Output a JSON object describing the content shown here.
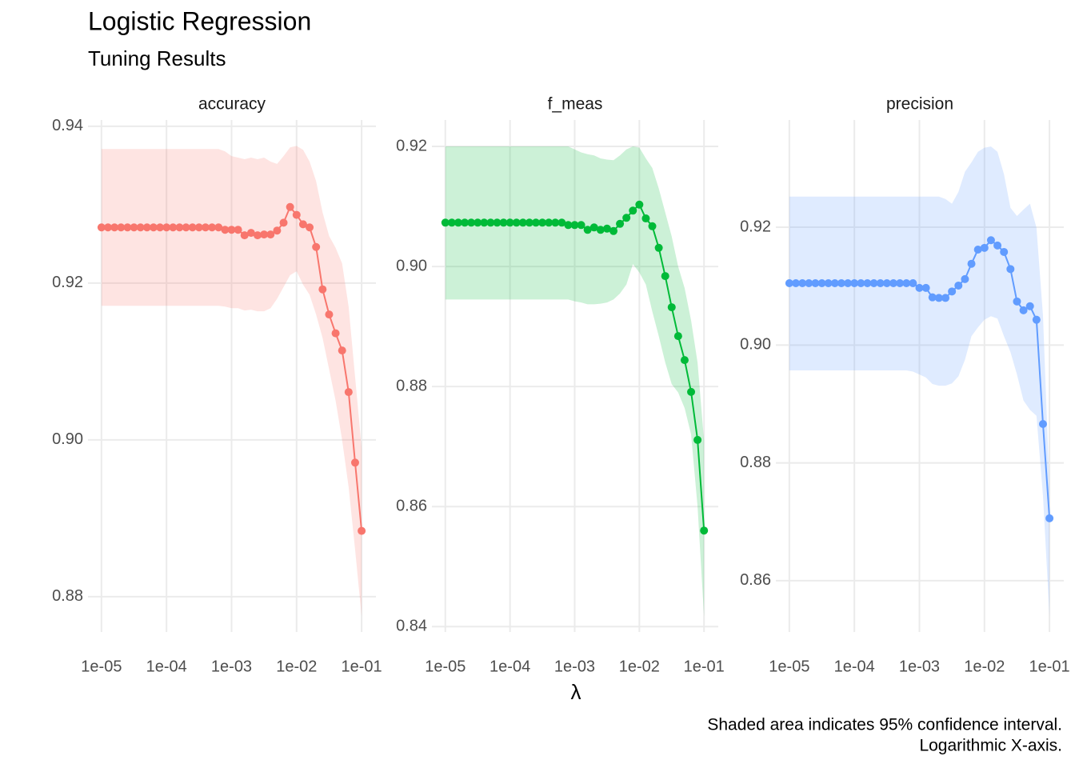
{
  "title": "Logistic Regression",
  "subtitle": "Tuning Results",
  "x_label": "λ",
  "caption": [
    "Shaded area indicates 95% confidence interval.",
    "Logarithmic X-axis."
  ],
  "chart_data": [
    {
      "type": "line",
      "title": "accuracy",
      "log_x": true,
      "grid": true,
      "color": "#F8766D",
      "x": [
        1e-05,
        1.259e-05,
        1.585e-05,
        1.995e-05,
        2.512e-05,
        3.162e-05,
        3.981e-05,
        5.012e-05,
        6.31e-05,
        7.943e-05,
        0.0001,
        0.0001259,
        0.0001585,
        0.0001995,
        0.0002512,
        0.0003162,
        0.0003981,
        0.0005012,
        0.000631,
        0.0007943,
        0.001,
        0.001259,
        0.001585,
        0.001995,
        0.002512,
        0.003162,
        0.003981,
        0.005012,
        0.00631,
        0.007943,
        0.01,
        0.01259,
        0.01585,
        0.01995,
        0.02512,
        0.03162,
        0.03981,
        0.05012,
        0.0631,
        0.07943,
        0.1
      ],
      "values": [
        0.9271,
        0.9271,
        0.9271,
        0.9271,
        0.9271,
        0.9271,
        0.9271,
        0.9271,
        0.9271,
        0.9271,
        0.9271,
        0.9271,
        0.9271,
        0.9271,
        0.9271,
        0.9271,
        0.9271,
        0.9271,
        0.9271,
        0.9268,
        0.9268,
        0.9268,
        0.9261,
        0.9264,
        0.9261,
        0.9262,
        0.9262,
        0.9267,
        0.9277,
        0.9297,
        0.9287,
        0.9275,
        0.9271,
        0.9246,
        0.9192,
        0.916,
        0.9136,
        0.9114,
        0.9061,
        0.8971,
        0.8884
      ],
      "upper": [
        0.9371,
        0.9371,
        0.9371,
        0.9371,
        0.9371,
        0.9371,
        0.9371,
        0.9371,
        0.9371,
        0.9371,
        0.9371,
        0.9371,
        0.9371,
        0.9371,
        0.9371,
        0.9371,
        0.9371,
        0.9371,
        0.9371,
        0.9368,
        0.9362,
        0.936,
        0.9358,
        0.936,
        0.9358,
        0.936,
        0.9355,
        0.9352,
        0.9362,
        0.9373,
        0.9375,
        0.937,
        0.9355,
        0.933,
        0.929,
        0.926,
        0.9245,
        0.9225,
        0.917,
        0.908,
        0.899
      ],
      "lower": [
        0.9171,
        0.9171,
        0.9171,
        0.9171,
        0.9171,
        0.9171,
        0.9171,
        0.9171,
        0.9171,
        0.9171,
        0.9171,
        0.9171,
        0.9171,
        0.9171,
        0.9171,
        0.9171,
        0.9171,
        0.9171,
        0.9171,
        0.917,
        0.9168,
        0.9168,
        0.9165,
        0.9166,
        0.9164,
        0.9164,
        0.9168,
        0.918,
        0.9195,
        0.921,
        0.9215,
        0.9198,
        0.9185,
        0.916,
        0.913,
        0.909,
        0.905,
        0.9,
        0.894,
        0.886,
        0.8775
      ],
      "xlim": [
        6.2e-06,
        0.166
      ],
      "xticks": [
        {
          "value": 1e-05,
          "label": "1e-05"
        },
        {
          "value": 0.0001,
          "label": "1e-04"
        },
        {
          "value": 0.001,
          "label": "1e-03"
        },
        {
          "value": 0.01,
          "label": "1e-02"
        },
        {
          "value": 0.1,
          "label": "1e-01"
        }
      ],
      "ylim": [
        0.8755,
        0.9408
      ],
      "yticks": [
        0.88,
        {
          "value": 0.9,
          "label": "0.90"
        },
        0.92,
        0.94
      ]
    },
    {
      "type": "line",
      "title": "f_meas",
      "log_x": true,
      "grid": true,
      "color": "#00BA38",
      "x": [
        1e-05,
        1.259e-05,
        1.585e-05,
        1.995e-05,
        2.512e-05,
        3.162e-05,
        3.981e-05,
        5.012e-05,
        6.31e-05,
        7.943e-05,
        0.0001,
        0.0001259,
        0.0001585,
        0.0001995,
        0.0002512,
        0.0003162,
        0.0003981,
        0.0005012,
        0.000631,
        0.0007943,
        0.001,
        0.001259,
        0.001585,
        0.001995,
        0.002512,
        0.003162,
        0.003981,
        0.005012,
        0.00631,
        0.007943,
        0.01,
        0.01259,
        0.01585,
        0.01995,
        0.02512,
        0.03162,
        0.03981,
        0.05012,
        0.0631,
        0.07943,
        0.1
      ],
      "values": [
        0.9073,
        0.9073,
        0.9073,
        0.9073,
        0.9073,
        0.9073,
        0.9073,
        0.9073,
        0.9073,
        0.9073,
        0.9073,
        0.9073,
        0.9073,
        0.9073,
        0.9073,
        0.9073,
        0.9073,
        0.9073,
        0.9073,
        0.9069,
        0.9069,
        0.9069,
        0.9061,
        0.9065,
        0.9061,
        0.9063,
        0.9059,
        0.9071,
        0.9081,
        0.9093,
        0.9103,
        0.908,
        0.9067,
        0.9031,
        0.8984,
        0.8932,
        0.8884,
        0.8844,
        0.8791,
        0.8711,
        0.856
      ],
      "upper": [
        0.92,
        0.92,
        0.92,
        0.92,
        0.92,
        0.92,
        0.92,
        0.92,
        0.92,
        0.92,
        0.92,
        0.92,
        0.92,
        0.92,
        0.92,
        0.92,
        0.92,
        0.92,
        0.92,
        0.92,
        0.9195,
        0.919,
        0.9187,
        0.9185,
        0.918,
        0.9178,
        0.9177,
        0.9185,
        0.9195,
        0.92,
        0.9198,
        0.918,
        0.9164,
        0.913,
        0.909,
        0.905,
        0.9,
        0.8964,
        0.891,
        0.884,
        0.871
      ],
      "lower": [
        0.8945,
        0.8945,
        0.8945,
        0.8945,
        0.8945,
        0.8945,
        0.8945,
        0.8945,
        0.8945,
        0.8945,
        0.8945,
        0.8945,
        0.8945,
        0.8945,
        0.8945,
        0.8945,
        0.8945,
        0.8945,
        0.8945,
        0.8945,
        0.8942,
        0.894,
        0.8937,
        0.8937,
        0.8938,
        0.894,
        0.8945,
        0.8955,
        0.897,
        0.9004,
        0.899,
        0.897,
        0.8925,
        0.8884,
        0.884,
        0.8804,
        0.879,
        0.8764,
        0.872,
        0.86,
        0.8417
      ],
      "xlim": [
        6.2e-06,
        0.166
      ],
      "xticks": [
        {
          "value": 1e-05,
          "label": "1e-05"
        },
        {
          "value": 0.0001,
          "label": "1e-04"
        },
        {
          "value": 0.001,
          "label": "1e-03"
        },
        {
          "value": 0.01,
          "label": "1e-02"
        },
        {
          "value": 0.1,
          "label": "1e-01"
        }
      ],
      "ylim": [
        0.8391,
        0.9244
      ],
      "yticks": [
        0.84,
        0.86,
        0.88,
        {
          "value": 0.9,
          "label": "0.90"
        },
        0.92
      ]
    },
    {
      "type": "line",
      "title": "precision",
      "log_x": true,
      "grid": true,
      "color": "#619CFF",
      "x": [
        1e-05,
        1.259e-05,
        1.585e-05,
        1.995e-05,
        2.512e-05,
        3.162e-05,
        3.981e-05,
        5.012e-05,
        6.31e-05,
        7.943e-05,
        0.0001,
        0.0001259,
        0.0001585,
        0.0001995,
        0.0002512,
        0.0003162,
        0.0003981,
        0.0005012,
        0.000631,
        0.0007943,
        0.001,
        0.001259,
        0.001585,
        0.001995,
        0.002512,
        0.003162,
        0.003981,
        0.005012,
        0.00631,
        0.007943,
        0.01,
        0.01259,
        0.01585,
        0.01995,
        0.02512,
        0.03162,
        0.03981,
        0.05012,
        0.0631,
        0.07943,
        0.1
      ],
      "values": [
        0.9105,
        0.9105,
        0.9105,
        0.9105,
        0.9105,
        0.9105,
        0.9105,
        0.9105,
        0.9105,
        0.9105,
        0.9105,
        0.9105,
        0.9105,
        0.9105,
        0.9105,
        0.9105,
        0.9105,
        0.9105,
        0.9105,
        0.9105,
        0.9097,
        0.9097,
        0.9081,
        0.908,
        0.908,
        0.9091,
        0.9101,
        0.9112,
        0.9138,
        0.9162,
        0.9165,
        0.9178,
        0.9169,
        0.9158,
        0.9129,
        0.9074,
        0.9059,
        0.9066,
        0.9043,
        0.8866,
        0.8706
      ],
      "upper": [
        0.9252,
        0.9252,
        0.9252,
        0.9252,
        0.9252,
        0.9252,
        0.9252,
        0.9252,
        0.9252,
        0.9252,
        0.9252,
        0.9252,
        0.9252,
        0.9252,
        0.9252,
        0.9252,
        0.9252,
        0.9252,
        0.9252,
        0.9252,
        0.9252,
        0.9252,
        0.9252,
        0.9252,
        0.9248,
        0.924,
        0.926,
        0.9294,
        0.931,
        0.9328,
        0.9335,
        0.9337,
        0.9328,
        0.929,
        0.9233,
        0.9219,
        0.923,
        0.924,
        0.9199,
        0.905,
        0.8757
      ],
      "lower": [
        0.8957,
        0.8957,
        0.8957,
        0.8957,
        0.8957,
        0.8957,
        0.8957,
        0.8957,
        0.8957,
        0.8957,
        0.8957,
        0.8957,
        0.8957,
        0.8957,
        0.8957,
        0.8957,
        0.8957,
        0.8957,
        0.8957,
        0.8955,
        0.895,
        0.8945,
        0.8934,
        0.8931,
        0.8931,
        0.8935,
        0.8947,
        0.8975,
        0.9015,
        0.903,
        0.9043,
        0.9049,
        0.9045,
        0.9015,
        0.8988,
        0.895,
        0.8906,
        0.889,
        0.888,
        0.8744,
        0.854
      ],
      "xlim": [
        6.2e-06,
        0.166
      ],
      "xticks": [
        {
          "value": 1e-05,
          "label": "1e-05"
        },
        {
          "value": 0.0001,
          "label": "1e-04"
        },
        {
          "value": 0.001,
          "label": "1e-03"
        },
        {
          "value": 0.01,
          "label": "1e-02"
        },
        {
          "value": 0.1,
          "label": "1e-01"
        }
      ],
      "ylim": [
        0.8513,
        0.9382
      ],
      "yticks": [
        0.86,
        0.88,
        {
          "value": 0.9,
          "label": "0.90"
        },
        0.92
      ]
    }
  ]
}
